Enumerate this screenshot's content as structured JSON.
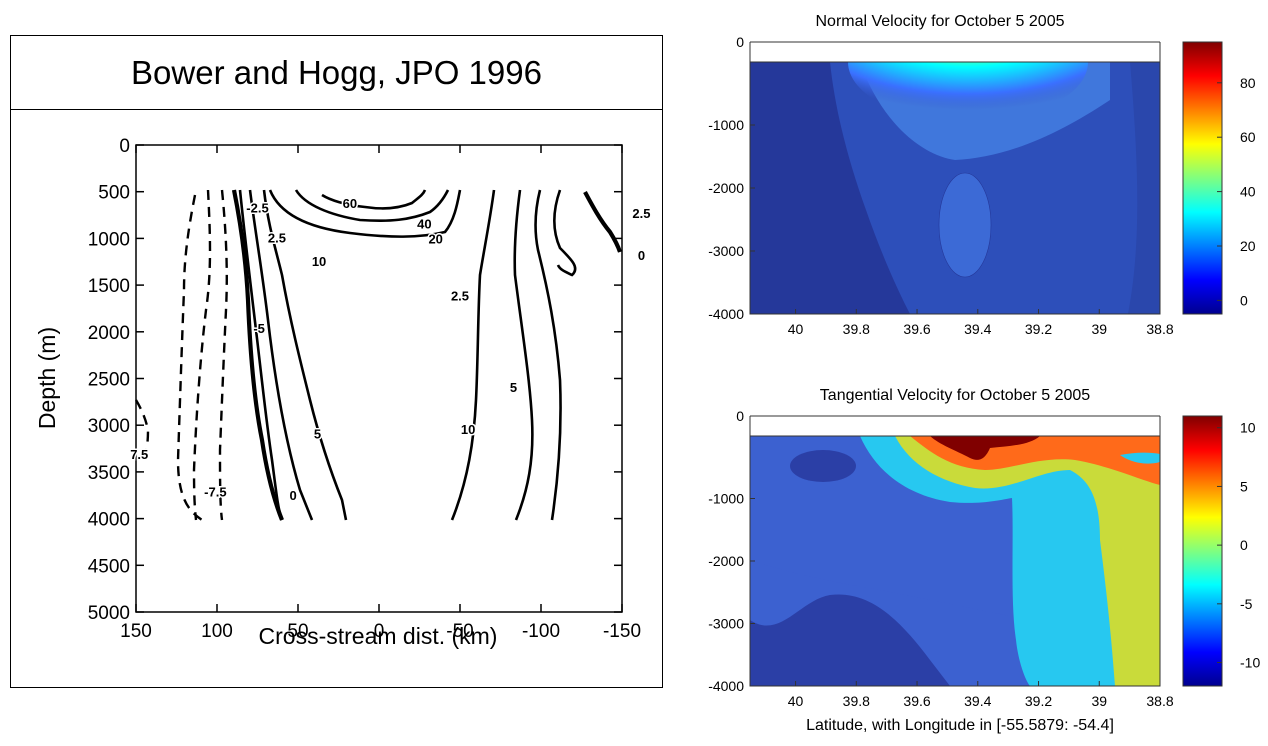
{
  "chart_data": [
    {
      "type": "contour",
      "title": "Bower and Hogg, JPO 1996",
      "xlabel": "Cross-stream dist. (km)",
      "ylabel": "Depth (m)",
      "xlim": [
        150,
        -150
      ],
      "ylim": [
        5000,
        0
      ],
      "xticks": [
        150,
        100,
        50,
        0,
        -50,
        -100,
        -150
      ],
      "yticks": [
        0,
        500,
        1000,
        1500,
        2000,
        2500,
        3000,
        3500,
        4000,
        4500,
        5000
      ],
      "contour_labels": [
        {
          "text": "60",
          "x": 18,
          "y": 630
        },
        {
          "text": "40",
          "x": -28,
          "y": 850
        },
        {
          "text": "20",
          "x": -35,
          "y": 1010
        },
        {
          "text": "10",
          "x": 37,
          "y": 1250
        },
        {
          "text": "-2.5",
          "x": 75,
          "y": 680
        },
        {
          "text": "2.5",
          "x": 63,
          "y": 1000
        },
        {
          "text": "-5",
          "x": 74,
          "y": 1970
        },
        {
          "text": "5",
          "x": 38,
          "y": 3100
        },
        {
          "text": "10",
          "x": -55,
          "y": 3050
        },
        {
          "text": "-7.5",
          "x": 101,
          "y": 3720
        },
        {
          "text": "7.5",
          "x": 148,
          "y": 3320
        },
        {
          "text": "0",
          "x": 53,
          "y": 3760
        },
        {
          "text": "2.5",
          "x": -50,
          "y": 1620
        },
        {
          "text": "5",
          "x": -83,
          "y": 2600
        },
        {
          "text": "2.5",
          "x": -162,
          "y": 740
        },
        {
          "text": "0",
          "x": -162,
          "y": 1190
        }
      ]
    },
    {
      "type": "heatmap",
      "title": "Normal Velocity for October 5 2005",
      "xlabel": "",
      "ylabel": "",
      "xticks": [
        40,
        39.8,
        39.6,
        39.4,
        39.2,
        39,
        38.8
      ],
      "yticks": [
        0,
        -1000,
        -2000,
        -3000,
        -4000
      ],
      "xlim": [
        40.15,
        38.8
      ],
      "ylim": [
        -4000,
        0
      ],
      "colorbar": {
        "ticks": [
          0,
          20,
          40,
          60,
          80
        ],
        "range": [
          -5,
          95
        ]
      }
    },
    {
      "type": "heatmap",
      "title": "Tangential Velocity for October 5 2005",
      "xlabel": "Latitude, with Longitude in [-55.5879: -54.4]",
      "ylabel": "",
      "xticks": [
        40,
        39.8,
        39.6,
        39.4,
        39.2,
        39,
        38.8
      ],
      "yticks": [
        0,
        -1000,
        -2000,
        -3000,
        -4000
      ],
      "xlim": [
        40.15,
        38.8
      ],
      "ylim": [
        -4000,
        0
      ],
      "colorbar": {
        "ticks": [
          10,
          5,
          0,
          -5,
          -10
        ],
        "range": [
          -12,
          11
        ]
      }
    }
  ],
  "colors": {
    "jet_dark_red": "#800000",
    "jet_red": "#ff0000",
    "jet_yellow": "#ffff00",
    "jet_cyan": "#00ffff",
    "jet_blue": "#0000ff",
    "jet_dark_blue": "#00008f"
  }
}
